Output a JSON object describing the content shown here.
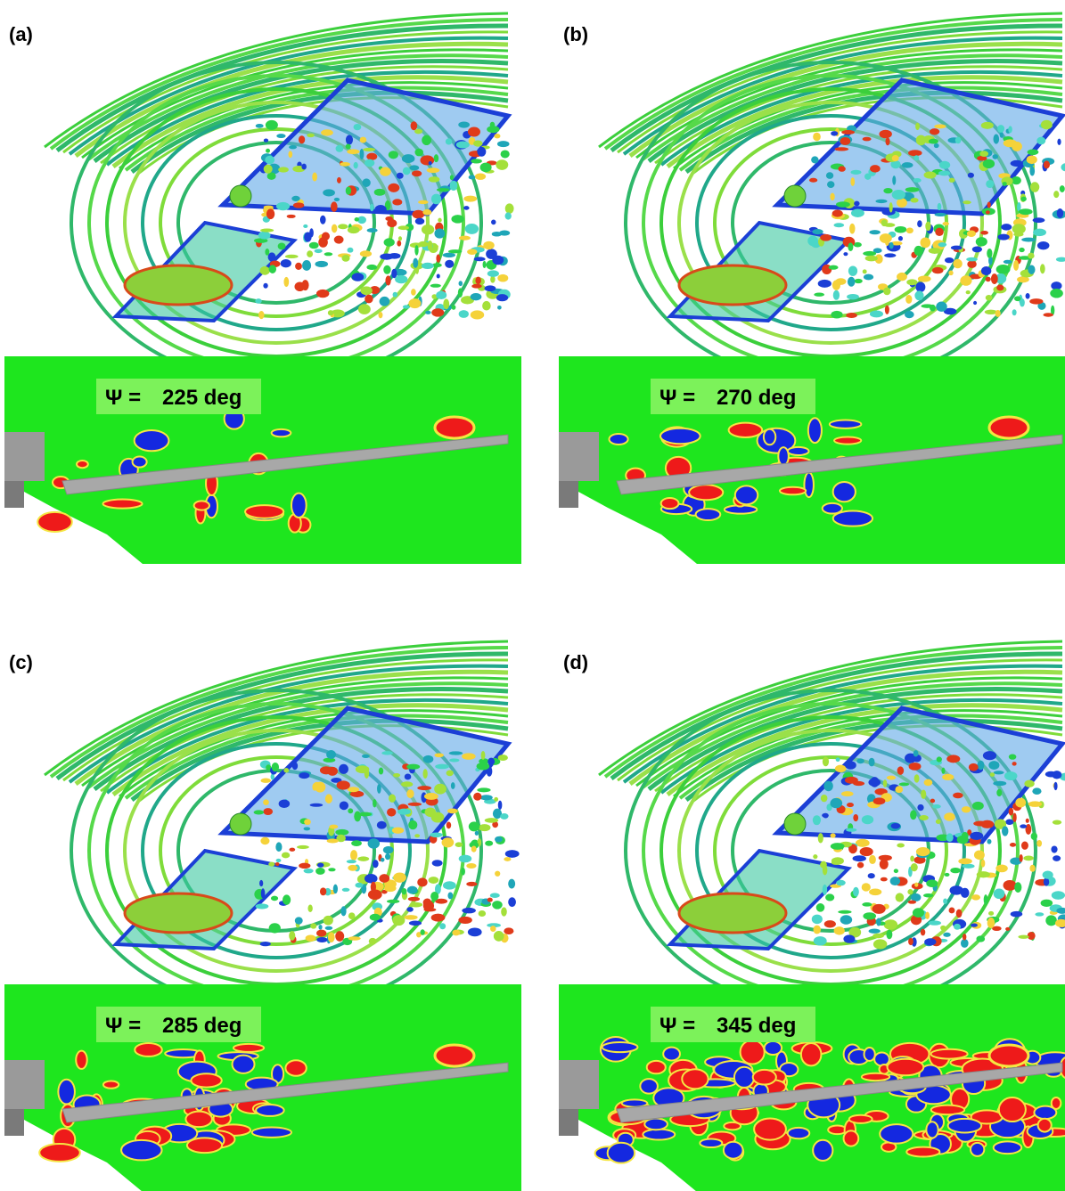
{
  "panels": [
    {
      "label": "(a)",
      "psi_label": "Ψ =",
      "angle": "225 deg"
    },
    {
      "label": "(b)",
      "psi_label": "Ψ =",
      "angle": "270 deg"
    },
    {
      "label": "(c)",
      "psi_label": "Ψ =",
      "angle": "285 deg"
    },
    {
      "label": "(d)",
      "psi_label": "Ψ =",
      "angle": "345 deg"
    }
  ]
}
